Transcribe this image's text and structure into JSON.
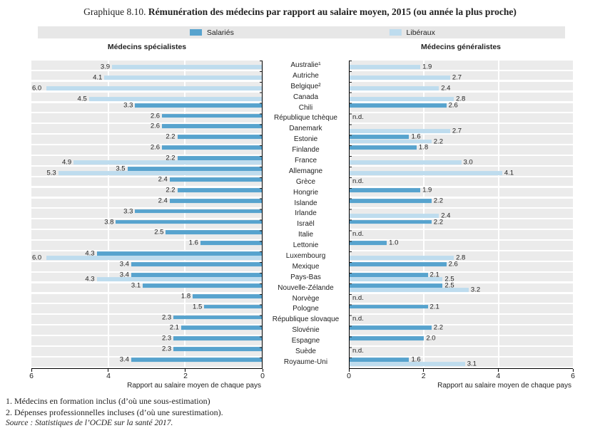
{
  "title": {
    "prefix": "Graphique 8.10.",
    "main": "Rémunération des médecins par rapport au salaire moyen, 2015 (ou année la plus proche)"
  },
  "legend": {
    "items": [
      {
        "key": "salaries",
        "label": "Salariés",
        "color": "#57a3ce"
      },
      {
        "key": "liberaux",
        "label": "Libéraux",
        "color": "#bedcee"
      }
    ]
  },
  "colors": {
    "band_background": "#ebebeb",
    "legend_strip": "#e7e7e7",
    "axis": "#000000"
  },
  "footnotes": [
    "1.  Médecins en formation inclus (d’où une sous-estimation)",
    "2.  Dépenses professionnelles incluses (d’où une surestimation)."
  ],
  "source": "Source :  Statistiques de l’OCDE sur la santé 2017.",
  "chart_data": {
    "type": "bar",
    "orientation": "horizontal",
    "categories": [
      "Australie¹",
      "Autriche",
      "Belgique²",
      "Canada",
      "Chili",
      "République tchèque",
      "Danemark",
      "Estonie",
      "Finlande",
      "France",
      "Allemagne",
      "Grèce",
      "Hongrie",
      "Islande",
      "Irlande",
      "Israël",
      "Italie",
      "Lettonie",
      "Luxembourg",
      "Mexique",
      "Pays-Bas",
      "Nouvelle-Zélande",
      "Norvège",
      "Pologne",
      "République slovaque",
      "Slovénie",
      "Espagne",
      "Suède",
      "Royaume-Uni"
    ],
    "panels": [
      {
        "title": "Médecins spécialistes",
        "xlabel": "Rapport au salaire moyen de chaque pays",
        "xlim": [
          0,
          6
        ],
        "ticks": [
          6,
          4,
          2,
          0
        ],
        "reversed": true,
        "nd": [],
        "nd_label": "n.d.",
        "series": [
          {
            "name": "Salariés",
            "values": [
              null,
              null,
              null,
              null,
              3.3,
              2.6,
              2.6,
              2.2,
              2.6,
              2.2,
              3.5,
              2.4,
              2.2,
              2.4,
              3.3,
              3.8,
              2.5,
              1.6,
              4.3,
              3.4,
              3.4,
              3.1,
              1.8,
              1.5,
              2.3,
              2.1,
              2.3,
              2.3,
              3.4
            ]
          },
          {
            "name": "Libéraux",
            "values": [
              3.9,
              4.1,
              6.0,
              4.5,
              null,
              null,
              null,
              null,
              null,
              4.9,
              5.3,
              null,
              null,
              null,
              null,
              null,
              null,
              null,
              6.0,
              null,
              4.3,
              null,
              null,
              null,
              null,
              null,
              null,
              null,
              null
            ]
          }
        ]
      },
      {
        "title": "Médecins généralistes",
        "xlabel": "Rapport au salaire moyen de chaque pays",
        "xlim": [
          0,
          6
        ],
        "ticks": [
          0,
          2,
          4,
          6
        ],
        "reversed": false,
        "nd": [
          5,
          11,
          16,
          22,
          24,
          27
        ],
        "nd_label": "n.d.",
        "series": [
          {
            "name": "Salariés",
            "values": [
              null,
              null,
              null,
              null,
              2.6,
              null,
              null,
              1.6,
              1.8,
              null,
              null,
              null,
              1.9,
              2.2,
              null,
              2.2,
              null,
              1.0,
              null,
              2.6,
              2.1,
              2.5,
              null,
              2.1,
              null,
              2.2,
              2.0,
              null,
              1.6
            ]
          },
          {
            "name": "Libéraux",
            "values": [
              1.9,
              2.7,
              2.4,
              2.8,
              null,
              null,
              2.7,
              2.2,
              null,
              3.0,
              4.1,
              null,
              null,
              null,
              2.4,
              null,
              null,
              null,
              2.8,
              null,
              2.5,
              3.2,
              null,
              null,
              null,
              null,
              null,
              null,
              3.1
            ]
          }
        ]
      }
    ]
  }
}
